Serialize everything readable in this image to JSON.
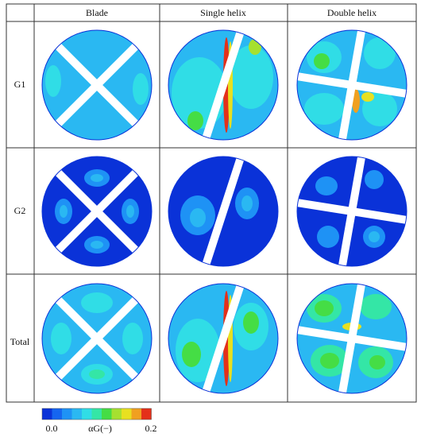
{
  "table": {
    "columns": [
      "Blade",
      "Single helix",
      "Double helix"
    ],
    "rows": [
      "G1",
      "G2",
      "Total"
    ]
  },
  "colorbar": {
    "min_label": "0.0",
    "max_label": "0.2",
    "title": "αG(−)"
  }
}
